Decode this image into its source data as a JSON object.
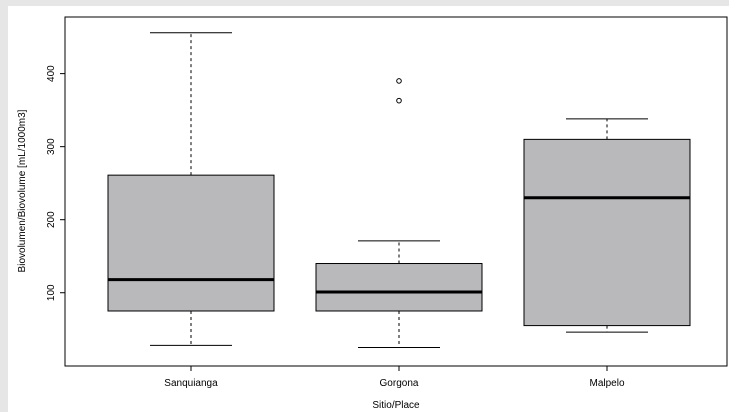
{
  "chart_data": {
    "type": "boxplot",
    "xlabel": "Sitio/Place",
    "ylabel": "Biovolumen/Biovolume [mL/1000m3]",
    "ylim": [
      12,
      457
    ],
    "yticks": [
      100,
      200,
      300,
      400
    ],
    "grid": false,
    "categories": [
      "Sanquianga",
      "Gorgona",
      "Malpelo"
    ],
    "boxes": [
      {
        "category": "Sanquianga",
        "whisker_low": 28,
        "q1": 75,
        "median": 118,
        "q3": 261,
        "whisker_high": 456,
        "outliers": []
      },
      {
        "category": "Gorgona",
        "whisker_low": 25,
        "q1": 75,
        "median": 101,
        "q3": 140,
        "whisker_high": 171,
        "outliers": [
          363,
          390
        ]
      },
      {
        "category": "Malpelo",
        "whisker_low": 46,
        "q1": 55,
        "median": 230,
        "q3": 310,
        "whisker_high": 338,
        "outliers": []
      }
    ],
    "colors": {
      "box_fill": "#b9b9bb",
      "stroke": "#000000",
      "background": "#ffffff",
      "outer_background": "#e6e6e6"
    }
  }
}
